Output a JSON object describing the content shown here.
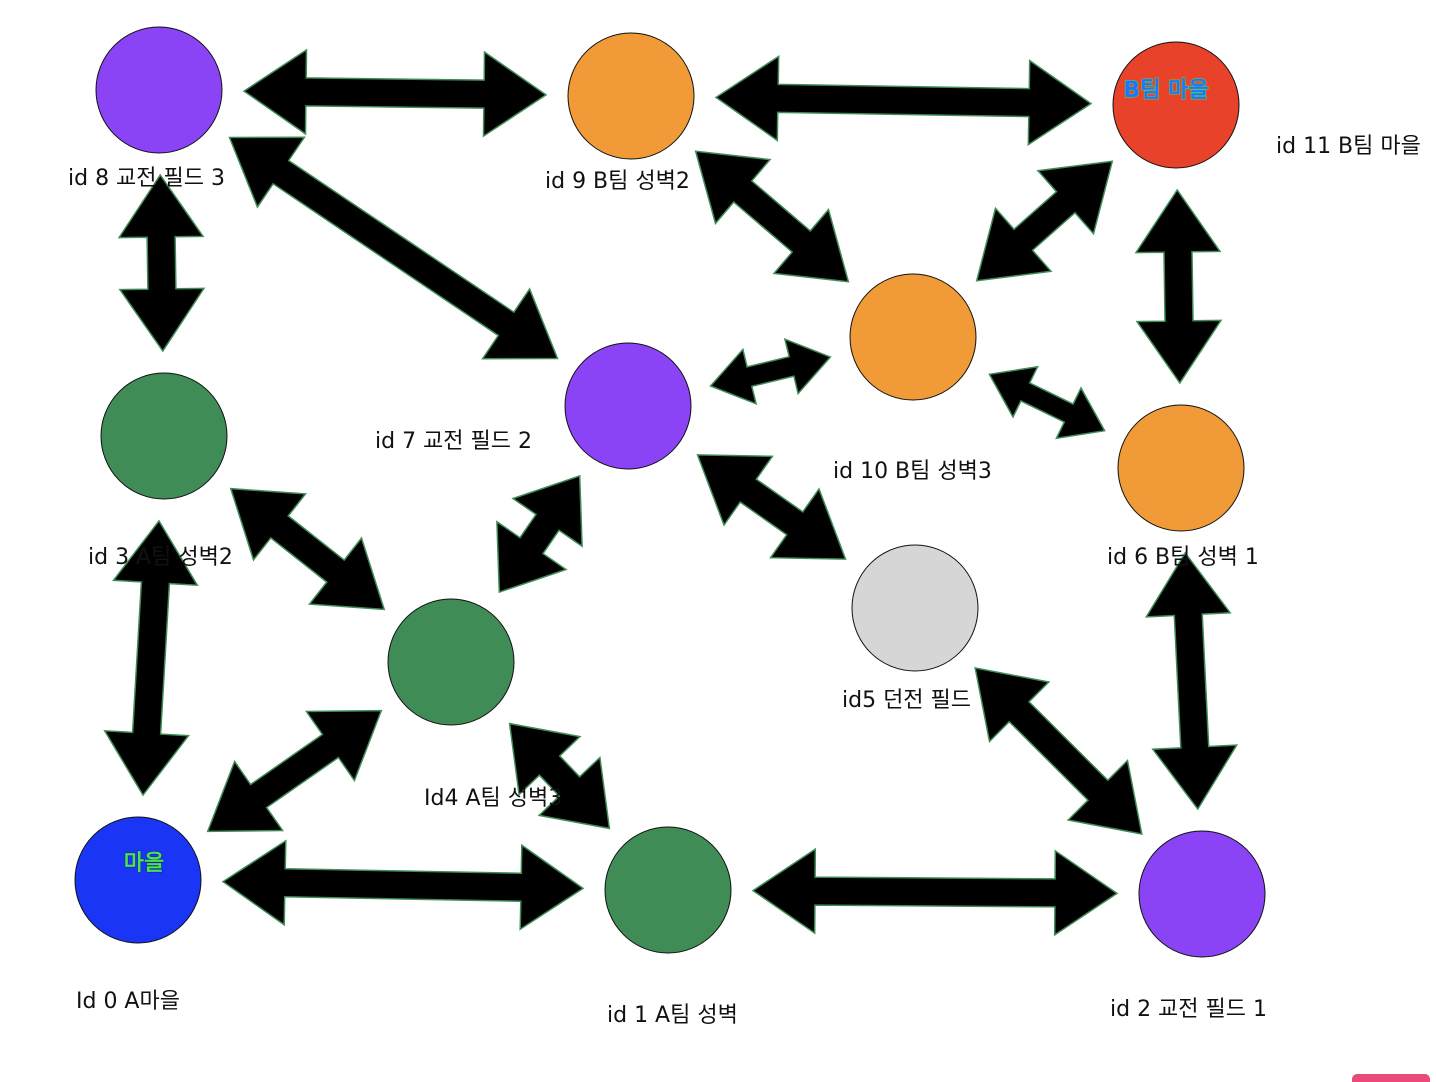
{
  "colors": {
    "village_a": "#1a35f5",
    "village_b": "#e8432a",
    "team_a_wall": "#3f8c57",
    "team_b_wall": "#f09b38",
    "exchange_field": "#8a43f5",
    "dungeon_field": "#d6d6d6",
    "arrow_fill": "#000000",
    "arrow_outline": "#3f8c57",
    "inner_label_a": "#4ee04e",
    "inner_label_b": "#1e73ff"
  },
  "nodes": [
    {
      "id": "n0",
      "label": "Id 0 A마을",
      "inner": "마을",
      "color": "village_a"
    },
    {
      "id": "n1",
      "label": "id 1 A팀 성벽",
      "color": "team_a_wall"
    },
    {
      "id": "n2",
      "label": "id 2   교전 필드 1",
      "color": "exchange_field"
    },
    {
      "id": "n3",
      "label": "id 3 A팀 성벽2",
      "color": "team_a_wall"
    },
    {
      "id": "n4",
      "label": "Id4 A팀 성벽3",
      "color": "team_a_wall"
    },
    {
      "id": "n5",
      "label": "id5 던전 필드",
      "color": "dungeon_field"
    },
    {
      "id": "n6",
      "label": "id 6 B팀 성벽 1",
      "color": "team_b_wall"
    },
    {
      "id": "n7",
      "label": "id 7 교전 필드 2",
      "color": "exchange_field"
    },
    {
      "id": "n8",
      "label": "id 8 교전 필드  3",
      "color": "exchange_field"
    },
    {
      "id": "n9",
      "label": "id 9 B팀 성벽2",
      "color": "team_b_wall"
    },
    {
      "id": "n10",
      "label": "id 10 B팀 성벽3",
      "color": "team_b_wall"
    },
    {
      "id": "n11",
      "label": "id 11 B팀 마을",
      "inner": "B팀 마을",
      "color": "village_b"
    }
  ],
  "edges": [
    {
      "from": "n8",
      "to": "n9"
    },
    {
      "from": "n9",
      "to": "n11"
    },
    {
      "from": "n8",
      "to": "n3"
    },
    {
      "from": "n8",
      "to": "n7"
    },
    {
      "from": "n9",
      "to": "n10"
    },
    {
      "from": "n11",
      "to": "n10"
    },
    {
      "from": "n11",
      "to": "n6"
    },
    {
      "from": "n7",
      "to": "n10"
    },
    {
      "from": "n10",
      "to": "n6"
    },
    {
      "from": "n3",
      "to": "n4"
    },
    {
      "from": "n4",
      "to": "n7"
    },
    {
      "from": "n7",
      "to": "n5"
    },
    {
      "from": "n3",
      "to": "n0"
    },
    {
      "from": "n6",
      "to": "n2"
    },
    {
      "from": "n4",
      "to": "n0"
    },
    {
      "from": "n4",
      "to": "n1"
    },
    {
      "from": "n5",
      "to": "n2"
    },
    {
      "from": "n0",
      "to": "n1"
    },
    {
      "from": "n1",
      "to": "n2"
    }
  ]
}
